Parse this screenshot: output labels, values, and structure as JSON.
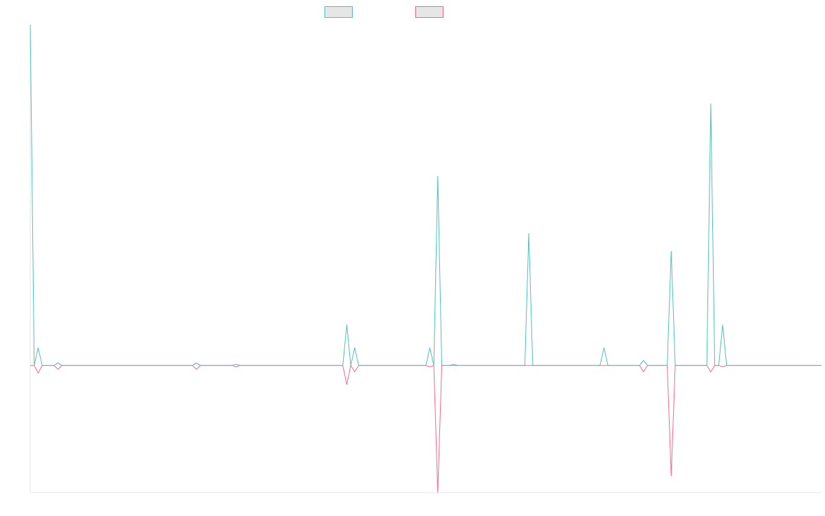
{
  "chart_data": {
    "type": "line",
    "title": "",
    "xlabel": "",
    "ylabel": "",
    "grid": false,
    "legend": "top-center",
    "x_count": 201,
    "ylim": [
      -100,
      268
    ],
    "series": [
      {
        "name": "",
        "color": "#4bc0c0",
        "fill": "#e6e6e6",
        "points": [
          [
            0,
            268
          ],
          [
            1,
            0
          ],
          [
            2,
            14
          ],
          [
            3,
            0
          ],
          [
            7,
            2
          ],
          [
            8,
            0
          ],
          [
            42,
            2
          ],
          [
            43,
            0
          ],
          [
            52,
            1
          ],
          [
            53,
            0
          ],
          [
            80,
            32
          ],
          [
            81,
            0
          ],
          [
            82,
            14
          ],
          [
            83,
            0
          ],
          [
            101,
            14
          ],
          [
            102,
            0
          ],
          [
            103,
            149
          ],
          [
            104,
            0
          ],
          [
            107,
            1
          ],
          [
            108,
            0
          ],
          [
            126,
            104
          ],
          [
            127,
            0
          ],
          [
            145,
            14
          ],
          [
            146,
            0
          ],
          [
            155,
            4
          ],
          [
            156,
            0
          ],
          [
            162,
            90
          ],
          [
            163,
            0
          ],
          [
            172,
            206
          ],
          [
            173,
            0
          ],
          [
            175,
            32
          ],
          [
            176,
            0
          ]
        ]
      },
      {
        "name": "",
        "color": "#ff6384",
        "fill": "#e6e6e6",
        "points": [
          [
            0,
            0
          ],
          [
            1,
            0
          ],
          [
            2,
            -6
          ],
          [
            3,
            0
          ],
          [
            7,
            -3
          ],
          [
            8,
            0
          ],
          [
            42,
            -3
          ],
          [
            43,
            0
          ],
          [
            52,
            -1
          ],
          [
            53,
            0
          ],
          [
            80,
            -15
          ],
          [
            81,
            0
          ],
          [
            82,
            -5
          ],
          [
            83,
            0
          ],
          [
            101,
            -1
          ],
          [
            102,
            0
          ],
          [
            103,
            -100
          ],
          [
            104,
            0
          ],
          [
            155,
            -5
          ],
          [
            156,
            0
          ],
          [
            162,
            -87
          ],
          [
            163,
            0
          ],
          [
            172,
            -5
          ],
          [
            173,
            0
          ],
          [
            175,
            -1
          ],
          [
            176,
            0
          ]
        ]
      }
    ]
  }
}
